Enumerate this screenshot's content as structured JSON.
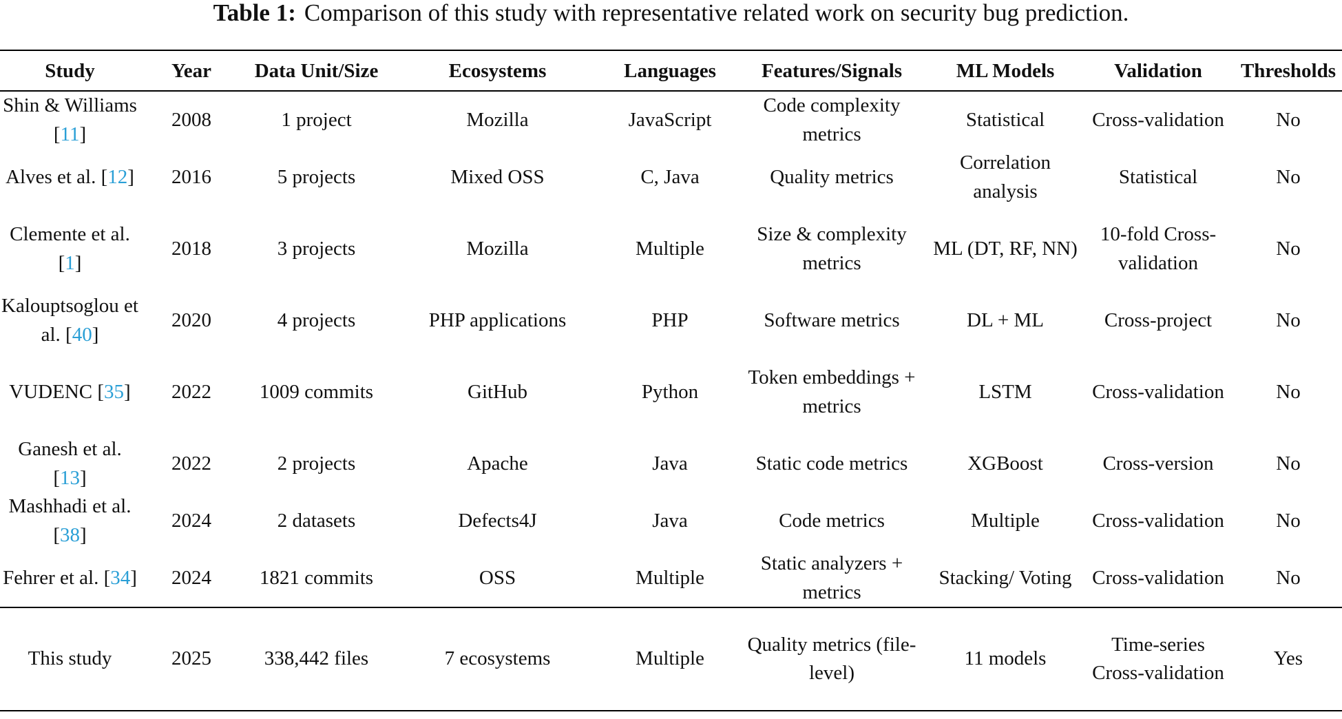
{
  "caption": {
    "label": "Table 1:",
    "text": "Comparison of this study with representative related work on security bug prediction."
  },
  "header": [
    "Study",
    "Year",
    "Data Unit/Size",
    "Ecosystems",
    "Languages",
    "Features/Signals",
    "ML Models",
    "Validation",
    "Thresholds"
  ],
  "rows": [
    {
      "study_pre": "Shin & Williams [",
      "ref": "11",
      "study_post": "]",
      "year": "2008",
      "data": "1 project",
      "eco": "Mozilla",
      "lang": "JavaScript",
      "features": "Code complexity metrics",
      "models": "Statistical",
      "validation": "Cross-validation",
      "thresholds": "No"
    },
    {
      "study_pre": "Alves et al. [",
      "ref": "12",
      "study_post": "]",
      "year": "2016",
      "data": "5 projects",
      "eco": "Mixed OSS",
      "lang": "C, Java",
      "features": "Quality metrics",
      "models": "Correlation analysis",
      "validation": "Statistical",
      "thresholds": "No"
    },
    {
      "study_pre": "Clemente et al. [",
      "ref": "1",
      "study_post": "]",
      "year": "2018",
      "data": "3 projects",
      "eco": "Mozilla",
      "lang": "Multiple",
      "features": "Size & complexity metrics",
      "models": "ML (DT, RF, NN)",
      "validation": "10-fold Cross-validation",
      "thresholds": "No"
    },
    {
      "study_pre": "Kalouptsoglou et al. [",
      "ref": "40",
      "study_post": "]",
      "year": "2020",
      "data": "4 projects",
      "eco": "PHP applications",
      "lang": "PHP",
      "features": "Software metrics",
      "models": "DL + ML",
      "validation": "Cross-project",
      "thresholds": "No"
    },
    {
      "study_pre": "VUDENC [",
      "ref": "35",
      "study_post": "]",
      "year": "2022",
      "data": "1009 commits",
      "eco": "GitHub",
      "lang": "Python",
      "features": "Token embeddings + metrics",
      "models": "LSTM",
      "validation": "Cross-validation",
      "thresholds": "No"
    },
    {
      "study_pre": "Ganesh et al. [",
      "ref": "13",
      "study_post": "]",
      "year": "2022",
      "data": "2 projects",
      "eco": "Apache",
      "lang": "Java",
      "features": "Static code metrics",
      "models": "XGBoost",
      "validation": "Cross-version",
      "thresholds": "No"
    },
    {
      "study_pre": "Mashhadi et al. [",
      "ref": "38",
      "study_post": "]",
      "year": "2024",
      "data": "2 datasets",
      "eco": "Defects4J",
      "lang": "Java",
      "features": "Code metrics",
      "models": "Multiple",
      "validation": "Cross-validation",
      "thresholds": "No"
    },
    {
      "study_pre": "Fehrer et al. [",
      "ref": "34",
      "study_post": "]",
      "year": "2024",
      "data": "1821 commits",
      "eco": "OSS",
      "lang": "Multiple",
      "features": "Static analyzers + metrics",
      "models": "Stacking/ Voting",
      "validation": "Cross-validation",
      "thresholds": "No"
    }
  ],
  "this_study": {
    "study": "This study",
    "year": "2025",
    "data": "338,442 files",
    "eco": "7 ecosystems",
    "lang": "Multiple",
    "features": "Quality metrics (file-level)",
    "models": "11 models",
    "validation": "Time-series Cross-validation",
    "thresholds": "Yes"
  }
}
